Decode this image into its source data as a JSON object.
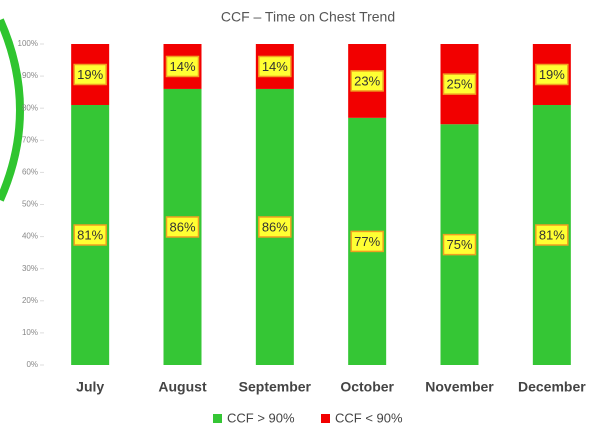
{
  "chart_data": {
    "type": "stacked_bar",
    "title": "CCF – Time on Chest Trend",
    "categories": [
      "July",
      "August",
      "September",
      "October",
      "November",
      "December"
    ],
    "series": [
      {
        "name": "CCF > 90%",
        "color": "#35c635",
        "values": [
          81,
          86,
          86,
          77,
          75,
          81
        ],
        "value_labels": [
          "81%",
          "86%",
          "86%",
          "77%",
          "75%",
          "81%"
        ]
      },
      {
        "name": "CCF < 90%",
        "color": "#f20000",
        "values": [
          19,
          14,
          14,
          23,
          25,
          19
        ],
        "value_labels": [
          "19%",
          "14%",
          "14%",
          "23%",
          "25%",
          "19%"
        ]
      }
    ],
    "ylim": [
      0,
      100
    ],
    "yticks": [
      {
        "value": 0,
        "label": "0%"
      },
      {
        "value": 10,
        "label": "10%"
      },
      {
        "value": 20,
        "label": "20%"
      },
      {
        "value": 30,
        "label": "30%"
      },
      {
        "value": 40,
        "label": "40%"
      },
      {
        "value": 50,
        "label": "50%"
      },
      {
        "value": 60,
        "label": "60%"
      },
      {
        "value": 70,
        "label": "70%"
      },
      {
        "value": 80,
        "label": "80%"
      },
      {
        "value": 90,
        "label": "90%"
      },
      {
        "value": 100,
        "label": "100%"
      }
    ],
    "legend": "bottom"
  }
}
